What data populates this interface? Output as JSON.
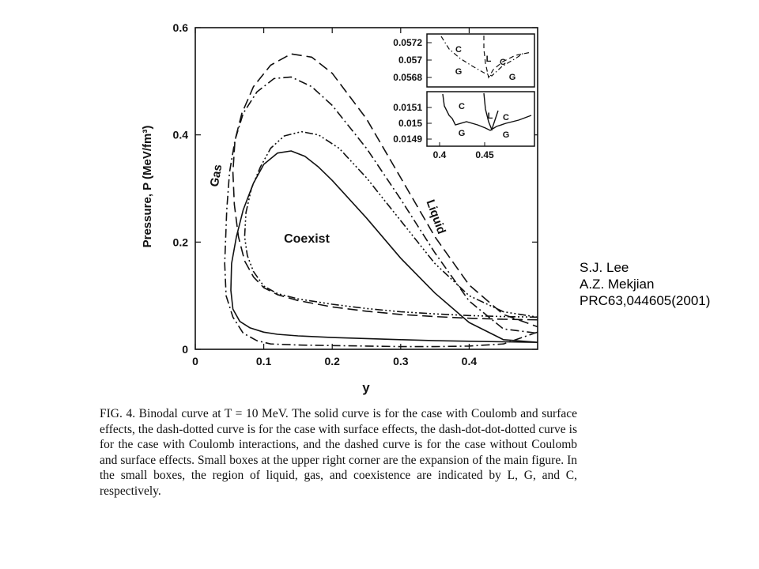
{
  "credit": {
    "author1": "S.J. Lee",
    "author2": "A.Z. Mekjian",
    "reference": "PRC63,044605(2001)"
  },
  "caption": {
    "label": "FIG. 4.",
    "text": "Binodal curve at T = 10 MeV. The solid curve is for the case with Coulomb and surface effects, the dash-dotted curve is for the case with surface effects, the dash-dot-dot-dotted curve is for the case with Coulomb interactions, and the dashed curve is for the case without Coulomb and surface effects. Small boxes at the upper right corner are the expansion of the main figure. In the small boxes, the region of liquid, gas, and coexistence are indicated by L, G, and C, respectively."
  },
  "chart_data": {
    "type": "line",
    "xlabel": "y",
    "ylabel": "Pressure, P (MeV/fm³)",
    "xlim": [
      0,
      0.5
    ],
    "ylim": [
      0,
      0.6
    ],
    "x_ticks": [
      0,
      0.1,
      0.2,
      0.3,
      0.4
    ],
    "x_tick_labels": [
      "0",
      "0.1",
      "0.2",
      "0.3",
      "0.4"
    ],
    "y_ticks": [
      0,
      0.2,
      0.4,
      0.6
    ],
    "y_tick_labels": [
      "0",
      "0.2",
      "0.4",
      "0.6"
    ],
    "annotations": [
      "Gas",
      "Coexist",
      "Liquid"
    ],
    "series": [
      {
        "style": "dashed",
        "points": [
          [
            0.5,
            0.055
          ],
          [
            0.45,
            0.056
          ],
          [
            0.4,
            0.058
          ],
          [
            0.35,
            0.061
          ],
          [
            0.3,
            0.065
          ],
          [
            0.25,
            0.071
          ],
          [
            0.2,
            0.079
          ],
          [
            0.15,
            0.091
          ],
          [
            0.12,
            0.102
          ],
          [
            0.1,
            0.115
          ],
          [
            0.085,
            0.135
          ],
          [
            0.072,
            0.165
          ],
          [
            0.063,
            0.21
          ],
          [
            0.057,
            0.27
          ],
          [
            0.055,
            0.33
          ],
          [
            0.058,
            0.39
          ],
          [
            0.068,
            0.44
          ],
          [
            0.085,
            0.49
          ],
          [
            0.11,
            0.53
          ],
          [
            0.14,
            0.551
          ],
          [
            0.17,
            0.545
          ],
          [
            0.2,
            0.515
          ],
          [
            0.25,
            0.43
          ],
          [
            0.3,
            0.32
          ],
          [
            0.35,
            0.21
          ],
          [
            0.4,
            0.12
          ],
          [
            0.45,
            0.065
          ],
          [
            0.5,
            0.042
          ]
        ]
      },
      {
        "style": "dash-dot",
        "points": [
          [
            0.5,
            0.032
          ],
          [
            0.45,
            0.01
          ],
          [
            0.4,
            0.006
          ],
          [
            0.35,
            0.005
          ],
          [
            0.3,
            0.005
          ],
          [
            0.25,
            0.006
          ],
          [
            0.2,
            0.007
          ],
          [
            0.15,
            0.008
          ],
          [
            0.11,
            0.01
          ],
          [
            0.09,
            0.016
          ],
          [
            0.07,
            0.03
          ],
          [
            0.055,
            0.06
          ],
          [
            0.045,
            0.1
          ],
          [
            0.043,
            0.16
          ],
          [
            0.046,
            0.26
          ],
          [
            0.05,
            0.33
          ],
          [
            0.058,
            0.39
          ],
          [
            0.07,
            0.44
          ],
          [
            0.09,
            0.48
          ],
          [
            0.115,
            0.505
          ],
          [
            0.14,
            0.508
          ],
          [
            0.17,
            0.49
          ],
          [
            0.2,
            0.455
          ],
          [
            0.25,
            0.375
          ],
          [
            0.3,
            0.28
          ],
          [
            0.35,
            0.18
          ],
          [
            0.4,
            0.09
          ],
          [
            0.45,
            0.038
          ],
          [
            0.5,
            0.03
          ]
        ]
      },
      {
        "style": "dash-dot-dot-dot",
        "points": [
          [
            0.5,
            0.06
          ],
          [
            0.45,
            0.061
          ],
          [
            0.4,
            0.063
          ],
          [
            0.35,
            0.066
          ],
          [
            0.3,
            0.07
          ],
          [
            0.25,
            0.076
          ],
          [
            0.2,
            0.084
          ],
          [
            0.15,
            0.094
          ],
          [
            0.12,
            0.104
          ],
          [
            0.1,
            0.118
          ],
          [
            0.085,
            0.145
          ],
          [
            0.076,
            0.175
          ],
          [
            0.072,
            0.21
          ],
          [
            0.074,
            0.255
          ],
          [
            0.082,
            0.3
          ],
          [
            0.095,
            0.34
          ],
          [
            0.11,
            0.375
          ],
          [
            0.13,
            0.398
          ],
          [
            0.155,
            0.406
          ],
          [
            0.18,
            0.4
          ],
          [
            0.21,
            0.375
          ],
          [
            0.25,
            0.32
          ],
          [
            0.3,
            0.24
          ],
          [
            0.35,
            0.16
          ],
          [
            0.4,
            0.1
          ],
          [
            0.45,
            0.07
          ],
          [
            0.5,
            0.06
          ]
        ]
      },
      {
        "style": "solid",
        "points": [
          [
            0.5,
            0.013
          ],
          [
            0.45,
            0.014
          ],
          [
            0.4,
            0.015
          ],
          [
            0.35,
            0.016
          ],
          [
            0.3,
            0.018
          ],
          [
            0.25,
            0.02
          ],
          [
            0.2,
            0.022
          ],
          [
            0.15,
            0.025
          ],
          [
            0.12,
            0.028
          ],
          [
            0.1,
            0.032
          ],
          [
            0.08,
            0.04
          ],
          [
            0.065,
            0.052
          ],
          [
            0.055,
            0.075
          ],
          [
            0.052,
            0.11
          ],
          [
            0.053,
            0.16
          ],
          [
            0.06,
            0.21
          ],
          [
            0.07,
            0.26
          ],
          [
            0.085,
            0.31
          ],
          [
            0.1,
            0.345
          ],
          [
            0.12,
            0.366
          ],
          [
            0.14,
            0.37
          ],
          [
            0.16,
            0.36
          ],
          [
            0.18,
            0.34
          ],
          [
            0.2,
            0.315
          ],
          [
            0.25,
            0.245
          ],
          [
            0.3,
            0.17
          ],
          [
            0.35,
            0.105
          ],
          [
            0.4,
            0.05
          ],
          [
            0.45,
            0.018
          ],
          [
            0.5,
            0.013
          ]
        ]
      }
    ],
    "insets": [
      {
        "ylim": [
          0.0566,
          0.0574
        ],
        "y_tick_labels": [
          "0.0572",
          "0.057",
          "0.0568"
        ],
        "region_labels": [
          "C",
          "L",
          "C",
          "G",
          "G"
        ]
      },
      {
        "ylim": [
          0.0148,
          0.0152
        ],
        "y_tick_labels": [
          "0.0151",
          "0.015",
          "0.0149"
        ],
        "region_labels": [
          "C",
          "L",
          "C",
          "G",
          "G"
        ],
        "xlim": [
          0.38,
          0.5
        ],
        "x_tick_labels": [
          "0.4",
          "0.45"
        ]
      }
    ]
  }
}
